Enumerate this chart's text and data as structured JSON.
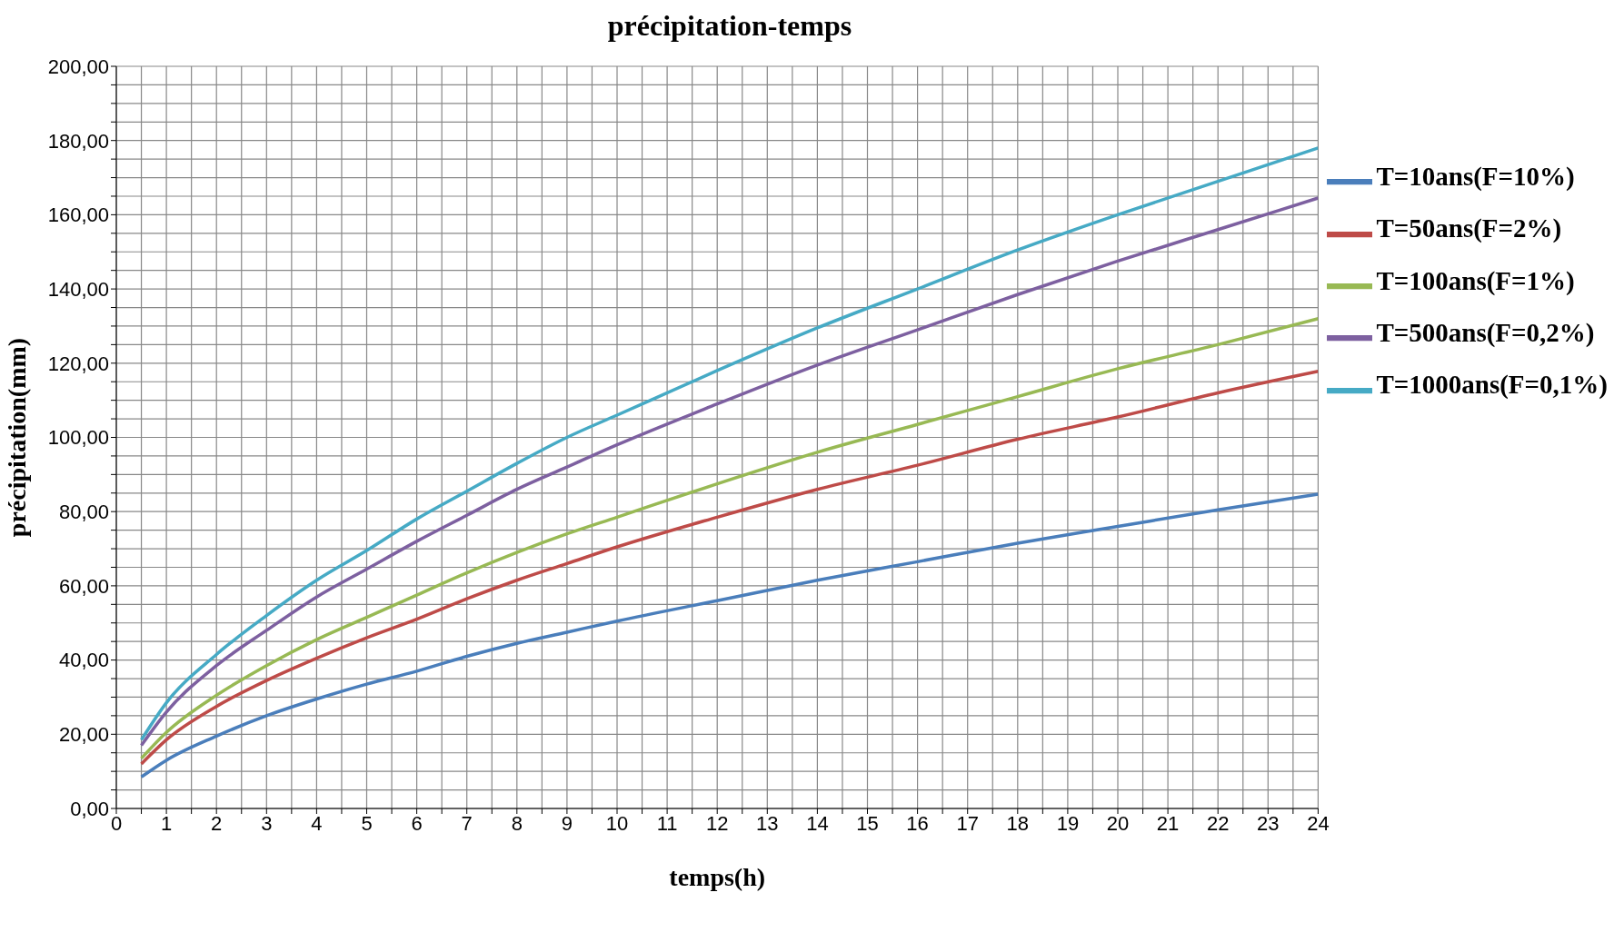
{
  "chart_data": {
    "type": "line",
    "title": "précipitation-temps",
    "xlabel": "temps(h)",
    "ylabel": "précipitation(mm)",
    "x": [
      0.5,
      1,
      2,
      3,
      4,
      5,
      6,
      7,
      8,
      9,
      10,
      12,
      14,
      16,
      18,
      20,
      22,
      24
    ],
    "series": [
      {
        "name": "T=10ans(F=10%)",
        "color": "#4a7ebb",
        "values": [
          8.5,
          13,
          19.5,
          25,
          29.5,
          33.5,
          37,
          41,
          44.5,
          47.5,
          50.5,
          56,
          61.5,
          66.5,
          71.5,
          76,
          80.5,
          84.7
        ]
      },
      {
        "name": "T=50ans(F=2%)",
        "color": "#be4b48",
        "values": [
          12,
          18.5,
          27.5,
          34.5,
          40.5,
          46,
          51,
          56.5,
          61.5,
          66,
          70.5,
          78.5,
          86,
          92.5,
          99.5,
          105.5,
          112,
          117.8
        ]
      },
      {
        "name": "T=100ans(F=1%)",
        "color": "#98b954",
        "values": [
          13.5,
          20.5,
          30.5,
          38.5,
          45.5,
          51.5,
          57.5,
          63.5,
          69,
          74,
          78.5,
          87.5,
          96,
          103.5,
          111,
          118.5,
          125,
          132
        ]
      },
      {
        "name": "T=500ans(F=0,2%)",
        "color": "#7d60a0",
        "values": [
          17,
          26,
          38.5,
          48,
          57,
          64.5,
          72,
          79,
          86,
          92,
          98,
          109,
          119.5,
          129,
          138.5,
          147.5,
          156,
          164.5
        ]
      },
      {
        "name": "T=1000ans(F=0,1%)",
        "color": "#46aac5",
        "values": [
          18.5,
          28.5,
          41.5,
          52,
          61.5,
          69.5,
          78,
          85.5,
          93,
          100,
          106,
          118,
          129.5,
          140,
          150.5,
          160,
          169,
          178
        ]
      }
    ],
    "xlim": [
      0,
      24
    ],
    "xticks": [
      0,
      {
        "value": 0.5,
        "label": null
      },
      1,
      {
        "value": 1.5,
        "label": null
      },
      2,
      {
        "value": 2.5,
        "label": null
      },
      3,
      {
        "value": 3.5,
        "label": null
      },
      4,
      {
        "value": 4.5,
        "label": null
      },
      5,
      {
        "value": 5.5,
        "label": null
      },
      6,
      {
        "value": 6.5,
        "label": null
      },
      7,
      {
        "value": 7.5,
        "label": null
      },
      8,
      {
        "value": 8.5,
        "label": null
      },
      9,
      {
        "value": 9.5,
        "label": null
      },
      10,
      {
        "value": 10.5,
        "label": null
      },
      11,
      {
        "value": 11.5,
        "label": null
      },
      12,
      {
        "value": 12.5,
        "label": null
      },
      13,
      {
        "value": 13.5,
        "label": null
      },
      14,
      {
        "value": 14.5,
        "label": null
      },
      15,
      {
        "value": 15.5,
        "label": null
      },
      16,
      {
        "value": 16.5,
        "label": null
      },
      17,
      {
        "value": 17.5,
        "label": null
      },
      18,
      {
        "value": 18.5,
        "label": null
      },
      19,
      {
        "value": 19.5,
        "label": null
      },
      20,
      {
        "value": 20.5,
        "label": null
      },
      21,
      {
        "value": 21.5,
        "label": null
      },
      22,
      {
        "value": 22.5,
        "label": null
      },
      23,
      {
        "value": 23.5,
        "label": null
      },
      24
    ],
    "ylim": [
      0,
      200
    ],
    "yticks": [
      {
        "value": 0,
        "label": "0,00"
      },
      {
        "value": 5,
        "label": null
      },
      {
        "value": 10,
        "label": null
      },
      {
        "value": 15,
        "label": null
      },
      {
        "value": 20,
        "label": "20,00"
      },
      {
        "value": 25,
        "label": null
      },
      {
        "value": 30,
        "label": null
      },
      {
        "value": 35,
        "label": null
      },
      {
        "value": 40,
        "label": "40,00"
      },
      {
        "value": 45,
        "label": null
      },
      {
        "value": 50,
        "label": null
      },
      {
        "value": 55,
        "label": null
      },
      {
        "value": 60,
        "label": "60,00"
      },
      {
        "value": 65,
        "label": null
      },
      {
        "value": 70,
        "label": null
      },
      {
        "value": 75,
        "label": null
      },
      {
        "value": 80,
        "label": "80,00"
      },
      {
        "value": 85,
        "label": null
      },
      {
        "value": 90,
        "label": null
      },
      {
        "value": 95,
        "label": null
      },
      {
        "value": 100,
        "label": "100,00"
      },
      {
        "value": 105,
        "label": null
      },
      {
        "value": 110,
        "label": null
      },
      {
        "value": 115,
        "label": null
      },
      {
        "value": 120,
        "label": "120,00"
      },
      {
        "value": 125,
        "label": null
      },
      {
        "value": 130,
        "label": null
      },
      {
        "value": 135,
        "label": null
      },
      {
        "value": 140,
        "label": "140,00"
      },
      {
        "value": 145,
        "label": null
      },
      {
        "value": 150,
        "label": null
      },
      {
        "value": 155,
        "label": null
      },
      {
        "value": 160,
        "label": "160,00"
      },
      {
        "value": 165,
        "label": null
      },
      {
        "value": 170,
        "label": null
      },
      {
        "value": 175,
        "label": null
      },
      {
        "value": 180,
        "label": "180,00"
      },
      {
        "value": 185,
        "label": null
      },
      {
        "value": 190,
        "label": null
      },
      {
        "value": 195,
        "label": null
      },
      {
        "value": 200,
        "label": "200,00"
      }
    ],
    "grid": true,
    "legend": "right",
    "marker": "none",
    "line_style": "solid"
  }
}
